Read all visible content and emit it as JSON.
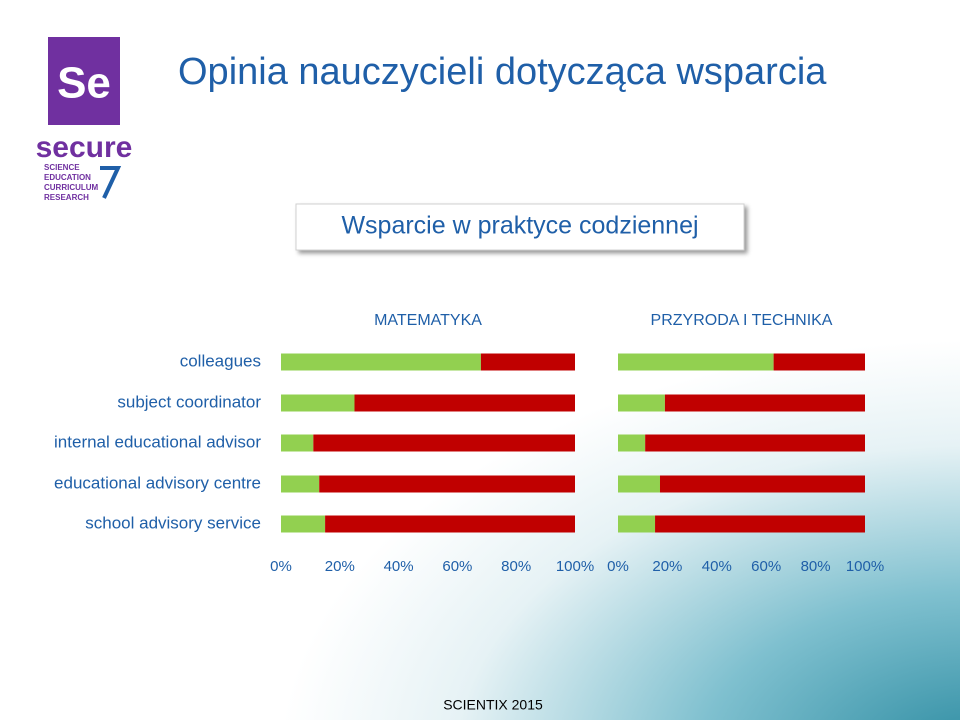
{
  "slide": {
    "title": "Opinia nauczycieli dotycząca wsparcia",
    "subtitle": "Wsparcie w praktyce codziennej",
    "footer": "SCIENTIX 2015",
    "logo": {
      "mark": "Se",
      "name": "secure",
      "lines": [
        "SCIENCE",
        "EDUCATION",
        "CURRICULUM",
        "RESEARCH"
      ]
    }
  },
  "chart_data": [
    {
      "type": "stacked-barh",
      "title": "MATEMATYKA",
      "categories": [
        "colleagues",
        "subject coordinator",
        "internal educational advisor",
        "educational advisory centre",
        "school advisory service"
      ],
      "series": [
        {
          "color": "#92d050",
          "values": [
            68,
            25,
            11,
            13,
            15
          ]
        },
        {
          "color": "#c00000",
          "values": [
            32,
            75,
            89,
            87,
            85
          ]
        }
      ],
      "xlim": [
        0,
        100
      ],
      "xticks": [
        {
          "value": 0,
          "label": "0%"
        },
        {
          "value": 20,
          "label": "20%"
        },
        {
          "value": 40,
          "label": "40%"
        },
        {
          "value": 60,
          "label": "60%"
        },
        {
          "value": 80,
          "label": "80%"
        },
        {
          "value": 100,
          "label": "100%"
        }
      ]
    },
    {
      "type": "stacked-barh",
      "title": "PRZYRODA I TECHNIKA",
      "series": [
        {
          "color": "#92d050",
          "values": [
            63,
            19,
            11,
            17,
            15
          ]
        },
        {
          "color": "#c00000",
          "values": [
            37,
            81,
            89,
            83,
            85
          ]
        }
      ],
      "xlim": [
        0,
        100
      ],
      "xticks": [
        {
          "value": 0,
          "label": "0%"
        },
        {
          "value": 20,
          "label": "20%"
        },
        {
          "value": 40,
          "label": "40%"
        },
        {
          "value": 60,
          "label": "60%"
        },
        {
          "value": 80,
          "label": "80%"
        },
        {
          "value": 100,
          "label": "100%"
        }
      ]
    }
  ]
}
